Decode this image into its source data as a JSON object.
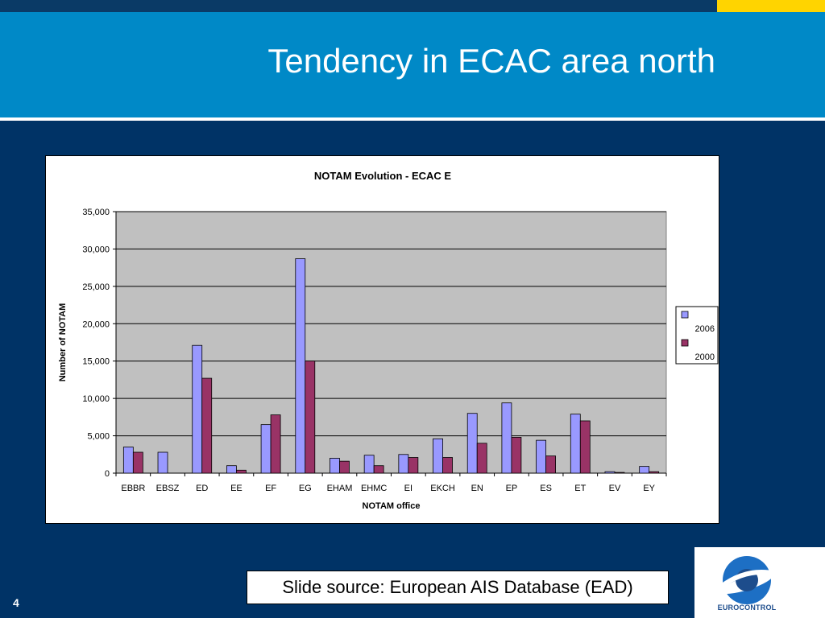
{
  "slide": {
    "title": "Tendency in ECAC area north",
    "source_text": "Slide source: European AIS Database (EAD)",
    "page_number": "4",
    "logo_text": "EUROCONTROL"
  },
  "colors": {
    "background": "#003366",
    "header": "#0089c7",
    "accent": "#ffd400",
    "plot_area": "#c0c0c0",
    "series_2006": "#9999ff",
    "series_2000": "#993366"
  },
  "chart_data": {
    "type": "bar",
    "title": "NOTAM Evolution - ECAC E",
    "xlabel": "NOTAM office",
    "ylabel": "Number of NOTAM",
    "ylim": [
      0,
      35000
    ],
    "yticks": [
      "0",
      "5,000",
      "10,000",
      "15,000",
      "20,000",
      "25,000",
      "30,000",
      "35,000"
    ],
    "ytick_values": [
      0,
      5000,
      10000,
      15000,
      20000,
      25000,
      30000,
      35000
    ],
    "grid": true,
    "legend_position": "right",
    "categories": [
      "EBBR",
      "EBSZ",
      "ED",
      "EE",
      "EF",
      "EG",
      "EHAM",
      "EHMC",
      "EI",
      "EKCH",
      "EN",
      "EP",
      "ES",
      "ET",
      "EV",
      "EY"
    ],
    "series": [
      {
        "name": "2006",
        "color": "#9999ff",
        "values": [
          3500,
          2800,
          17100,
          1000,
          6500,
          28700,
          2000,
          2400,
          2500,
          4600,
          8000,
          9400,
          4400,
          7900,
          200,
          900
        ]
      },
      {
        "name": "2000",
        "color": "#993366",
        "values": [
          2800,
          0,
          12700,
          400,
          7800,
          15000,
          1600,
          1000,
          2100,
          2100,
          4000,
          4800,
          2300,
          7000,
          100,
          200
        ]
      }
    ]
  }
}
